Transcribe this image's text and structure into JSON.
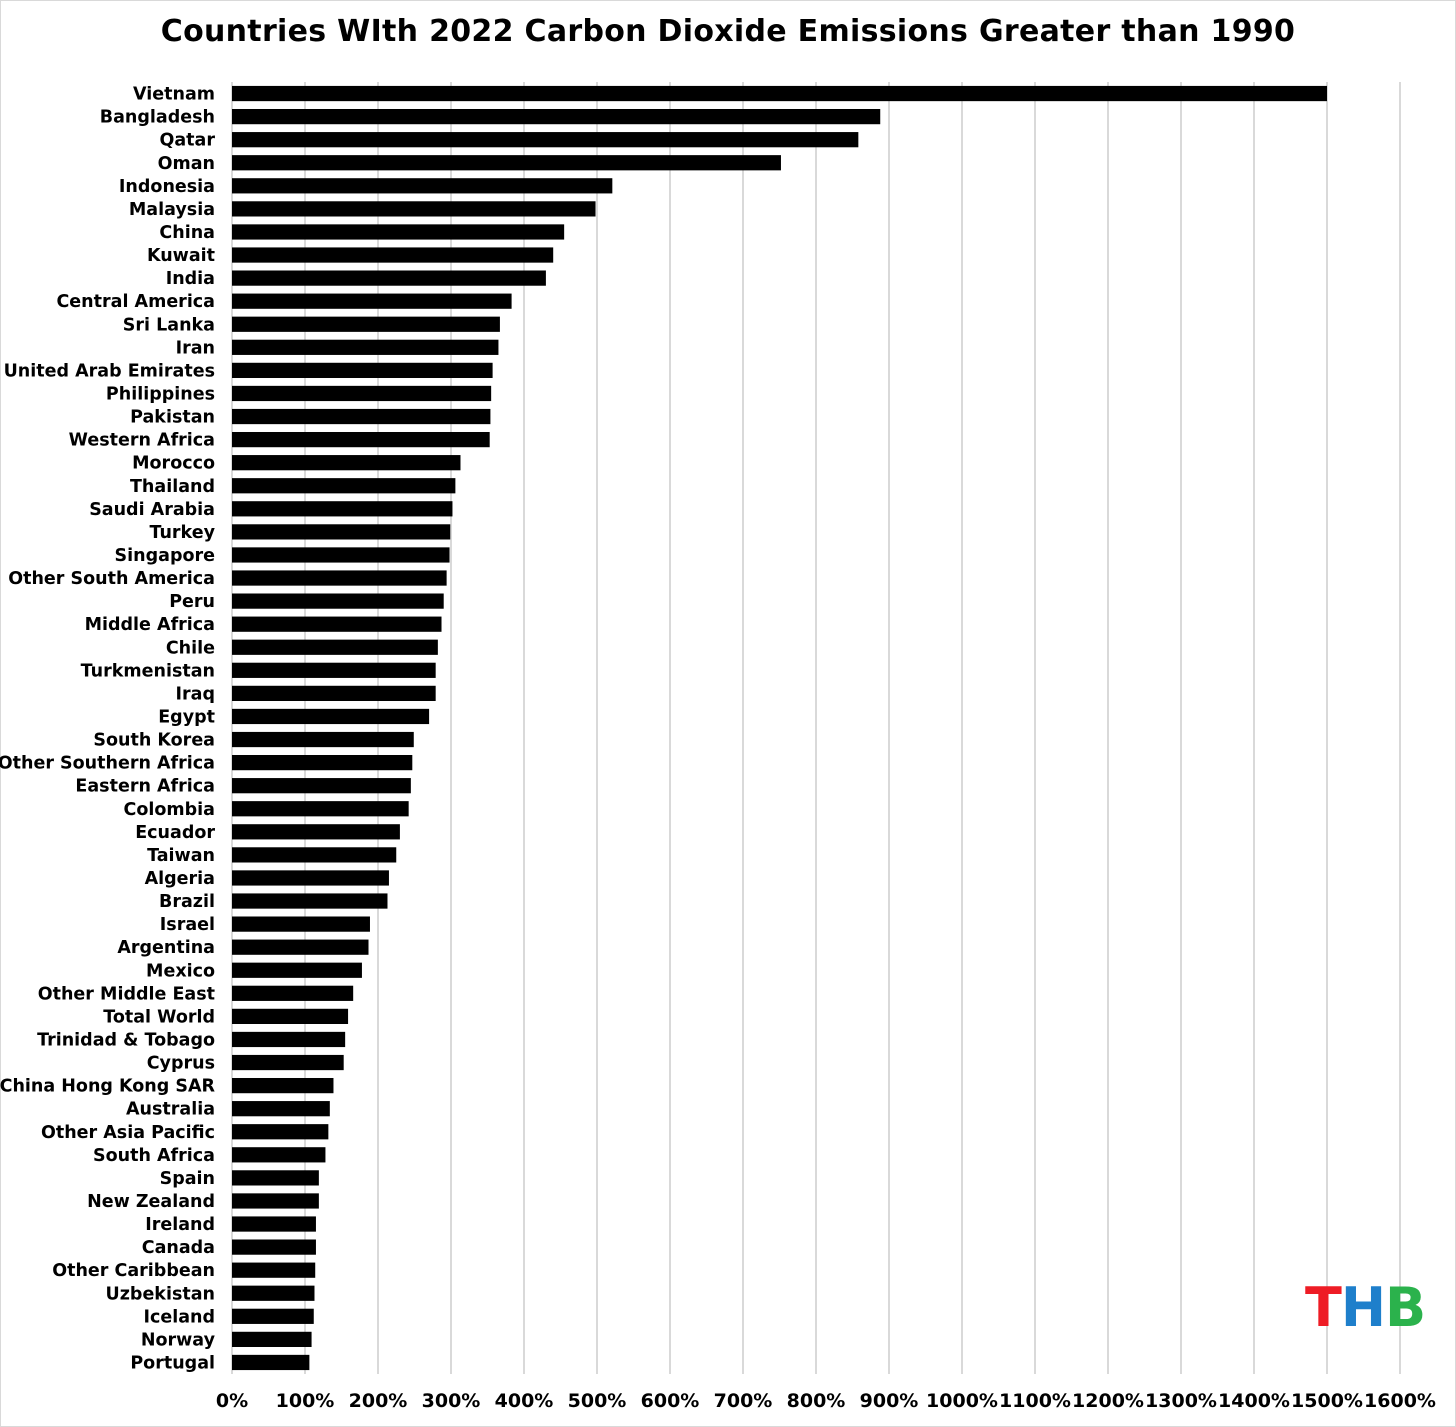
{
  "chart_data": {
    "type": "bar",
    "orientation": "horizontal",
    "title": "Countries WIth 2022 Carbon Dioxide Emissions Greater than 1990",
    "xlabel": "",
    "ylabel": "",
    "xlim": [
      0,
      1600
    ],
    "x_unit": "%",
    "x_ticks": [
      "0%",
      "100%",
      "200%",
      "300%",
      "400%",
      "500%",
      "600%",
      "700%",
      "800%",
      "900%",
      "1000%",
      "1100%",
      "1200%",
      "1300%",
      "1400%",
      "1500%",
      "1600%"
    ],
    "grid": true,
    "bar_color": "#000000",
    "grid_color": "#d9d9d9",
    "categories": [
      "Vietnam",
      "Bangladesh",
      "Qatar",
      "Oman",
      "Indonesia",
      "Malaysia",
      "China",
      "Kuwait",
      "India",
      "Central America",
      "Sri Lanka",
      "Iran",
      "United Arab Emirates",
      "Philippines",
      "Pakistan",
      "Western Africa",
      "Morocco",
      "Thailand",
      "Saudi Arabia",
      "Turkey",
      "Singapore",
      "Other South America",
      "Peru",
      "Middle Africa",
      "Chile",
      "Turkmenistan",
      "Iraq",
      "Egypt",
      "South Korea",
      "Other Southern Africa",
      "Eastern Africa",
      "Colombia",
      "Ecuador",
      "Taiwan",
      "Algeria",
      "Brazil",
      "Israel",
      "Argentina",
      "Mexico",
      "Other Middle East",
      "Total World",
      "Trinidad & Tobago",
      "Cyprus",
      "China Hong Kong SAR",
      "Australia",
      "Other Asia Pacific",
      "South Africa",
      "Spain",
      "New Zealand",
      "Ireland",
      "Canada",
      "Other Caribbean",
      "Uzbekistan",
      "Iceland",
      "Norway",
      "Portugal"
    ],
    "values": [
      1500,
      888,
      858,
      752,
      521,
      498,
      455,
      440,
      430,
      383,
      367,
      365,
      357,
      355,
      354,
      353,
      313,
      306,
      302,
      299,
      298,
      294,
      290,
      287,
      282,
      279,
      279,
      270,
      249,
      247,
      245,
      242,
      230,
      225,
      215,
      213,
      189,
      187,
      178,
      166,
      159,
      155,
      153,
      139,
      134,
      132,
      128,
      119,
      119,
      115,
      115,
      114,
      113,
      112,
      109,
      106
    ]
  },
  "logo": {
    "t": "T",
    "h": "H",
    "b": "B",
    "t_color": "#ee1c25",
    "h_color": "#1e7fcb",
    "b_color": "#2bb24c"
  }
}
